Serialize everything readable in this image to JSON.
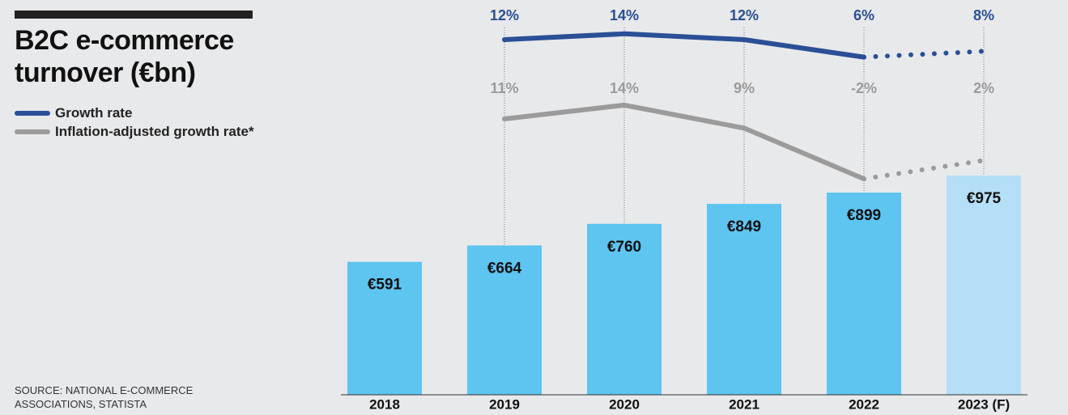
{
  "chart_data": {
    "type": "bar",
    "title": "B2C e-commerce turnover (€bn)",
    "source": "SOURCE: NATIONAL E-COMMERCE ASSOCIATIONS, STATISTA",
    "categories": [
      "2018",
      "2019",
      "2020",
      "2021",
      "2022",
      "2023 (F)"
    ],
    "values": [
      591,
      664,
      760,
      849,
      899,
      975
    ],
    "value_labels": [
      "€591",
      "€664",
      "€760",
      "€849",
      "€899",
      "€975"
    ],
    "colors": [
      "#5ec4f0",
      "#5ec4f0",
      "#5ec4f0",
      "#5ec4f0",
      "#5ec4f0",
      "#b5dff6"
    ],
    "series": [
      {
        "name": "Growth rate",
        "color": "#2b4f96",
        "values": [
          null,
          12,
          14,
          12,
          6,
          8
        ],
        "value_labels": [
          null,
          "12%",
          "14%",
          "12%",
          "6%",
          "8%"
        ]
      },
      {
        "name": "Inflation-adjusted growth rate*",
        "color": "#9b9b9b",
        "values": [
          null,
          11,
          14,
          9,
          -2,
          2
        ],
        "value_labels": [
          null,
          "11%",
          "14%",
          "9%",
          "-2%",
          "2%"
        ]
      }
    ]
  }
}
